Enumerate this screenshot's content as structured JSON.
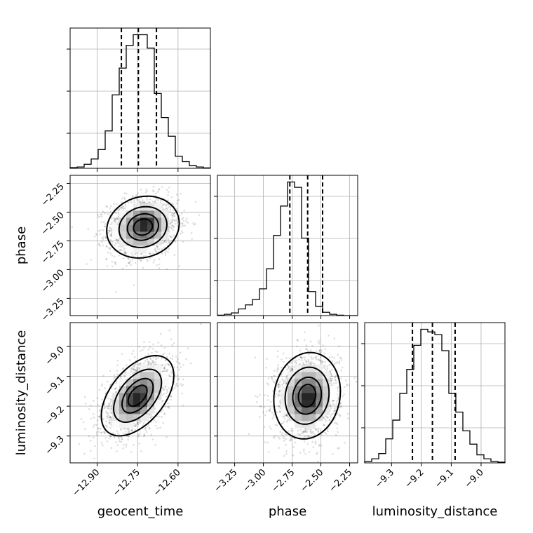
{
  "chart_data": {
    "type": "corner",
    "parameters": [
      "geocent_time",
      "phase",
      "luminosity_distance"
    ],
    "axes": {
      "geocent_time": {
        "range": [
          -13.0,
          -12.48
        ],
        "ticks": [
          -12.9,
          -12.75,
          -12.6
        ],
        "tick_labels": [
          "−12.90",
          "−12.75",
          "−12.60"
        ]
      },
      "phase": {
        "range": [
          -3.4,
          -2.18
        ],
        "ticks": [
          -3.25,
          -3.0,
          -2.75,
          -2.5,
          -2.25
        ],
        "tick_labels": [
          "−3.25",
          "−3.00",
          "−2.75",
          "−2.50",
          "−2.25"
        ]
      },
      "luminosity_distance": {
        "range": [
          -9.39,
          -8.92
        ],
        "ticks": [
          -9.3,
          -9.2,
          -9.1,
          -9.0
        ],
        "tick_labels": [
          "−9.3",
          "−9.2",
          "−9.1",
          "−9.0"
        ]
      }
    },
    "marginals": [
      {
        "parameter": "geocent_time",
        "bin_edges": [
          -13.0,
          -12.974,
          -12.948,
          -12.922,
          -12.896,
          -12.87,
          -12.844,
          -12.818,
          -12.792,
          -12.766,
          -12.74,
          -12.714,
          -12.688,
          -12.662,
          -12.636,
          -12.61,
          -12.584,
          -12.558,
          -12.532,
          -12.506,
          -12.48
        ],
        "counts": [
          0.005,
          0.01,
          0.03,
          0.07,
          0.14,
          0.28,
          0.55,
          0.75,
          0.92,
          1.0,
          1.0,
          0.9,
          0.56,
          0.38,
          0.24,
          0.09,
          0.05,
          0.02,
          0.01,
          0.003
        ],
        "quantiles": [
          -12.81,
          -12.747,
          -12.68
        ]
      },
      {
        "parameter": "phase",
        "bin_edges": [
          -3.4,
          -3.339,
          -3.278,
          -3.217,
          -3.156,
          -3.095,
          -3.034,
          -2.973,
          -2.912,
          -2.851,
          -2.79,
          -2.729,
          -2.668,
          -2.607,
          -2.546,
          -2.485,
          -2.424,
          -2.363,
          -2.302,
          -2.241,
          -2.18
        ],
        "counts": [
          0.003,
          0.01,
          0.02,
          0.05,
          0.08,
          0.12,
          0.2,
          0.35,
          0.6,
          0.82,
          1.0,
          0.96,
          0.58,
          0.18,
          0.07,
          0.025,
          0.01,
          0.003,
          0.0,
          0.0
        ],
        "quantiles": [
          -2.77,
          -2.615,
          -2.485
        ]
      },
      {
        "parameter": "luminosity_distance",
        "bin_edges": [
          -9.39,
          -9.3665,
          -9.343,
          -9.3195,
          -9.296,
          -9.2725,
          -9.249,
          -9.2255,
          -9.202,
          -9.1785,
          -9.155,
          -9.1315,
          -9.108,
          -9.0845,
          -9.061,
          -9.0375,
          -9.014,
          -8.9905,
          -8.967,
          -8.9435,
          -8.92
        ],
        "counts": [
          0.01,
          0.03,
          0.07,
          0.18,
          0.32,
          0.52,
          0.7,
          0.88,
          1.0,
          0.98,
          0.96,
          0.84,
          0.52,
          0.38,
          0.24,
          0.14,
          0.06,
          0.03,
          0.01,
          0.005
        ],
        "quantiles": [
          -9.23,
          -9.163,
          -9.087
        ]
      }
    ],
    "joint": [
      {
        "x": "geocent_time",
        "y": "phase",
        "mean": [
          -12.73,
          -2.63
        ],
        "sd": [
          0.065,
          0.13
        ],
        "rho": 0.12,
        "peak": [
          -12.72,
          -2.59
        ]
      },
      {
        "x": "geocent_time",
        "y": "luminosity_distance",
        "mean": [
          -12.75,
          -9.165
        ],
        "sd": [
          0.065,
          0.065
        ],
        "rho": 0.5,
        "peak": [
          -12.75,
          -9.18
        ]
      },
      {
        "x": "phase",
        "y": "luminosity_distance",
        "mean": [
          -2.62,
          -9.165
        ],
        "sd": [
          0.14,
          0.07
        ],
        "rho": 0.1,
        "peak": [
          -2.6,
          -9.18
        ]
      }
    ],
    "contour_sigma_levels": [
      0.5,
      1.0,
      1.5,
      2.0
    ]
  }
}
